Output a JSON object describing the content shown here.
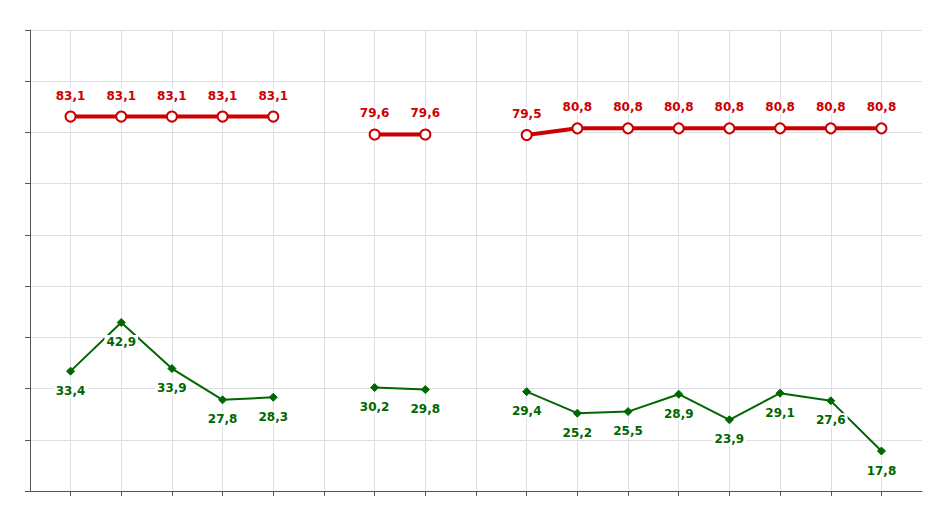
{
  "chart_data": {
    "type": "line",
    "x": [
      1,
      2,
      3,
      4,
      5,
      6,
      7,
      8,
      9,
      10,
      11,
      12,
      13,
      14,
      15,
      16,
      17
    ],
    "xlim": [
      0.2,
      17.8
    ],
    "xticks": [
      1,
      2,
      3,
      4,
      5,
      6,
      7,
      8,
      9,
      10,
      11,
      12,
      13,
      14,
      15,
      16,
      17
    ],
    "ylim": [
      10,
      100
    ],
    "yticks": [
      10,
      20,
      30,
      40,
      50,
      60,
      70,
      80,
      90,
      100
    ],
    "grid": true,
    "tick_labels": false,
    "data_labels": true,
    "series": [
      {
        "color": "#cc0000",
        "marker": "circle",
        "values": [
          83.1,
          83.1,
          83.1,
          83.1,
          83.1,
          null,
          79.6,
          79.6,
          null,
          79.5,
          80.8,
          80.8,
          80.8,
          80.8,
          80.8,
          80.8,
          80.8
        ],
        "value_labels": [
          "83,1",
          "83,1",
          "83,1",
          "83,1",
          "83,1",
          null,
          "79,6",
          "79,6",
          null,
          "79,5",
          "80,8",
          "80,8",
          "80,8",
          "80,8",
          "80,8",
          "80,8",
          "80,8"
        ]
      },
      {
        "color": "#006600",
        "marker": "diamond",
        "values": [
          33.4,
          42.9,
          33.9,
          27.8,
          28.3,
          null,
          30.2,
          29.8,
          null,
          29.4,
          25.2,
          25.5,
          28.9,
          23.9,
          29.1,
          27.6,
          17.8
        ],
        "value_labels": [
          "33,4",
          "42,9",
          "33,9",
          "27,8",
          "28,3",
          null,
          "30,2",
          "29,8",
          null,
          "29,4",
          "25,2",
          "25,5",
          "28,9",
          "23,9",
          "29,1",
          "27,6",
          "17,8"
        ]
      }
    ]
  }
}
